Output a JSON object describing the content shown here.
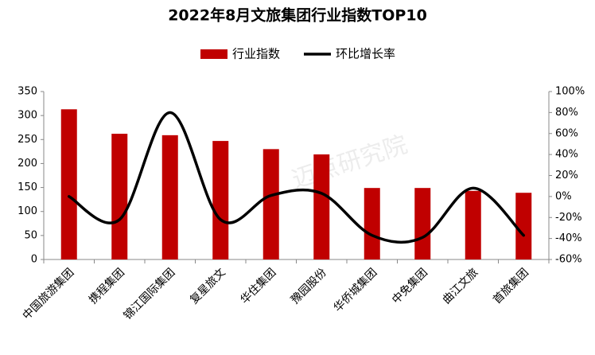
{
  "chart_data": {
    "type": "bar",
    "title": "2022年8月文旅集团行业指数TOP10",
    "watermark": "迈点研究院",
    "categories": [
      "中国旅游集团",
      "携程集团",
      "锦江国际集团",
      "复星旅文",
      "华住集团",
      "豫园股份",
      "华侨城集团",
      "中免集团",
      "曲江文旅",
      "首旅集团"
    ],
    "series": [
      {
        "name": "行业指数",
        "color": "#c00000",
        "type": "bar",
        "values": [
          313,
          262,
          259,
          247,
          230,
          219,
          149,
          149,
          143,
          139
        ]
      },
      {
        "name": "环比增长率",
        "color": "#000000",
        "type": "line",
        "axis": "y2",
        "values": [
          0,
          -22,
          80,
          -22,
          1,
          3,
          -37,
          -39,
          8,
          -37
        ]
      }
    ],
    "ylim": [
      0,
      350
    ],
    "yticks": [
      0,
      50,
      100,
      150,
      200,
      250,
      300,
      350
    ],
    "y2lim": [
      -60,
      100
    ],
    "y2ticks": [
      {
        "value": -60,
        "label": "-60%"
      },
      {
        "value": -40,
        "label": "-40%"
      },
      {
        "value": -20,
        "label": "-20%"
      },
      {
        "value": 0,
        "label": "0%"
      },
      {
        "value": 20,
        "label": "20%"
      },
      {
        "value": 40,
        "label": "40%"
      },
      {
        "value": 60,
        "label": "60%"
      },
      {
        "value": 80,
        "label": "80%"
      },
      {
        "value": 100,
        "label": "100%"
      }
    ],
    "legend": "top"
  }
}
